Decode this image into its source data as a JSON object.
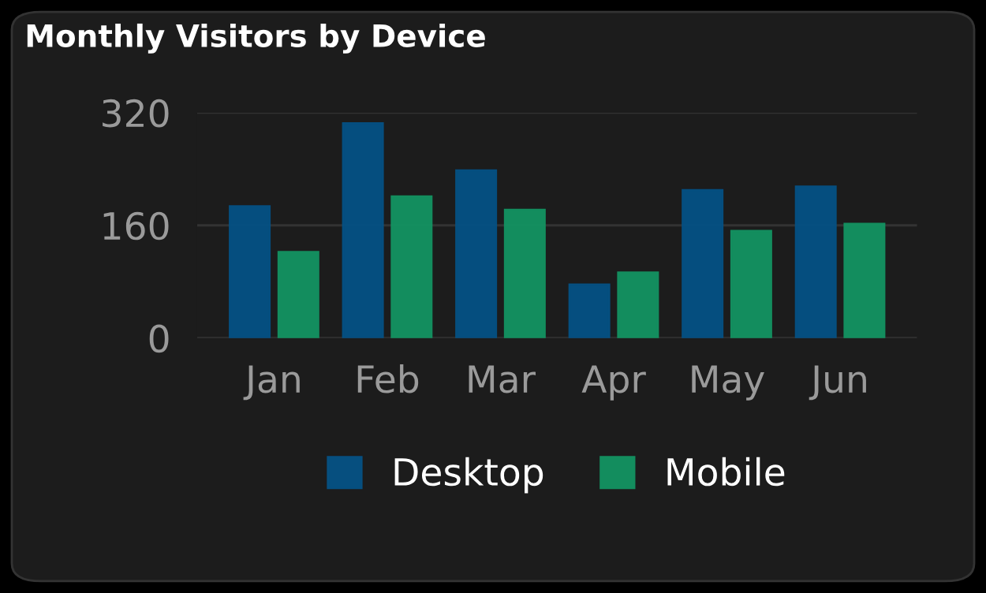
{
  "chart_data": {
    "type": "bar",
    "title": "Monthly Visitors by Device",
    "categories": [
      "Jan",
      "Feb",
      "Mar",
      "Apr",
      "May",
      "Jun"
    ],
    "series": [
      {
        "name": "Desktop",
        "color": "#055285",
        "values": [
          187,
          305,
          238,
          76,
          210,
          215
        ]
      },
      {
        "name": "Mobile",
        "color": "#139462",
        "values": [
          122,
          201,
          182,
          93,
          152,
          162
        ]
      }
    ],
    "ylim": [
      0,
      320
    ],
    "yticks": [
      0,
      160,
      320
    ],
    "grid": "y",
    "legend": "bottom"
  }
}
